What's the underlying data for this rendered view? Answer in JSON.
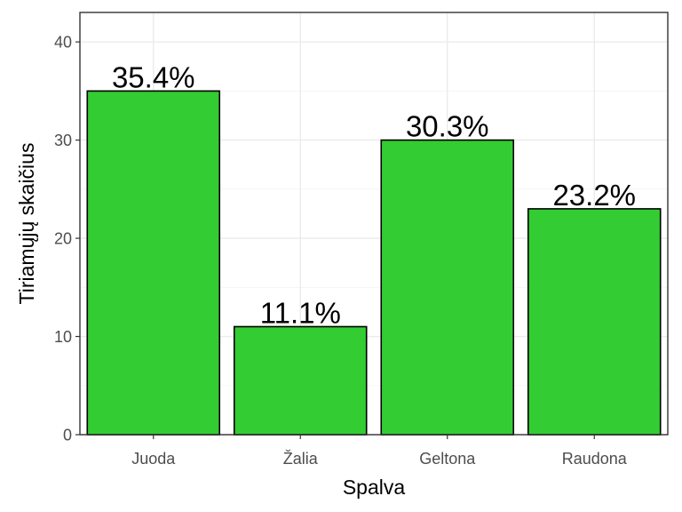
{
  "chart_data": {
    "type": "bar",
    "categories": [
      "Juoda",
      "Žalia",
      "Geltona",
      "Raudona"
    ],
    "values": [
      35,
      11,
      30,
      23
    ],
    "data_labels": [
      "35.4%",
      "11.1%",
      "30.3%",
      "23.2%"
    ],
    "title": "",
    "xlabel": "Spalva",
    "ylabel": "Tiriamųjų skaičius",
    "ylim": [
      0,
      43
    ],
    "yticks": [
      0,
      10,
      20,
      30,
      40
    ],
    "ytick_labels": [
      "0",
      "10",
      "20",
      "30",
      "40"
    ],
    "grid": true,
    "legend": "none",
    "bar_color": "#33cc33",
    "bar_outline": "#000000"
  }
}
